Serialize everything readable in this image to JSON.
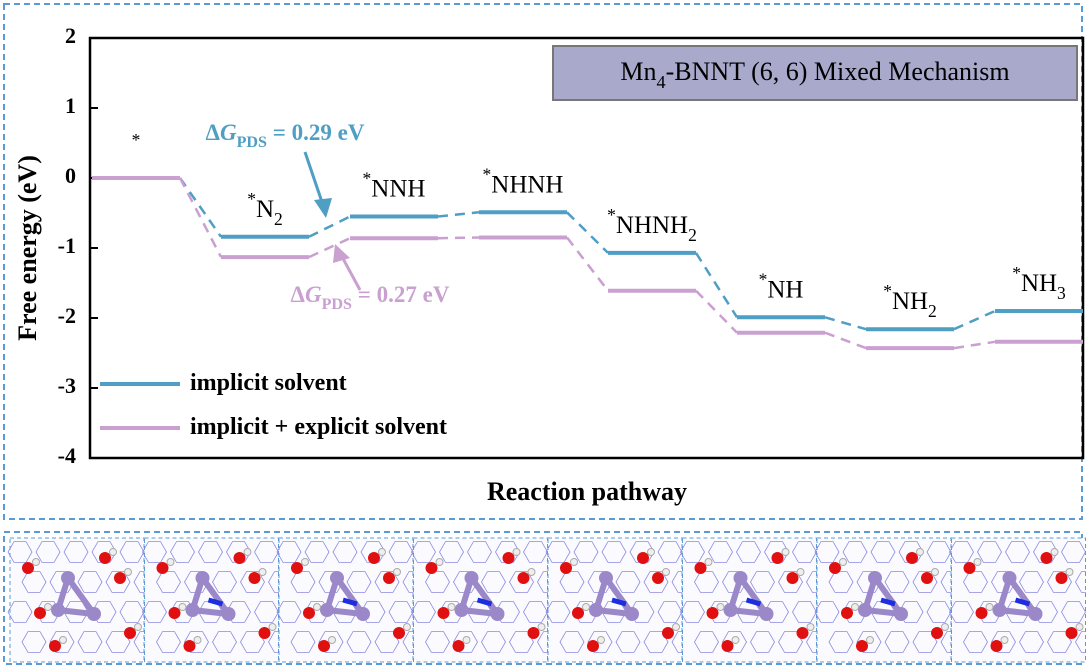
{
  "chart_data": {
    "type": "energy-levels",
    "title": "Mn4-BNNT (6, 6)   Mixed Mechanism",
    "x_label": "Reaction pathway",
    "y_label": "Free energy (eV)",
    "categories": [
      "*",
      "*N2",
      "*NNH",
      "*NHNH",
      "*NHNH2",
      "*NH",
      "*NH2",
      "*NH3"
    ],
    "series": [
      {
        "name": "implicit solvent",
        "color": "#4f9ec4",
        "values": [
          0,
          -0.84,
          -0.55,
          -0.49,
          -1.07,
          -1.99,
          -2.16,
          -1.9
        ]
      },
      {
        "name": "implicit + explicit solvent",
        "color": "#c9a0d0",
        "values": [
          0,
          -1.13,
          -0.86,
          -0.85,
          -1.61,
          -2.21,
          -2.43,
          -2.34
        ]
      }
    ],
    "annotations": [
      "ΔGPDS = 0.29 eV",
      "ΔGPDS = 0.27 eV"
    ],
    "ylim": [
      -4,
      2
    ],
    "yticks": [
      -4,
      -3,
      -2,
      -1,
      0,
      1,
      2
    ]
  }
}
